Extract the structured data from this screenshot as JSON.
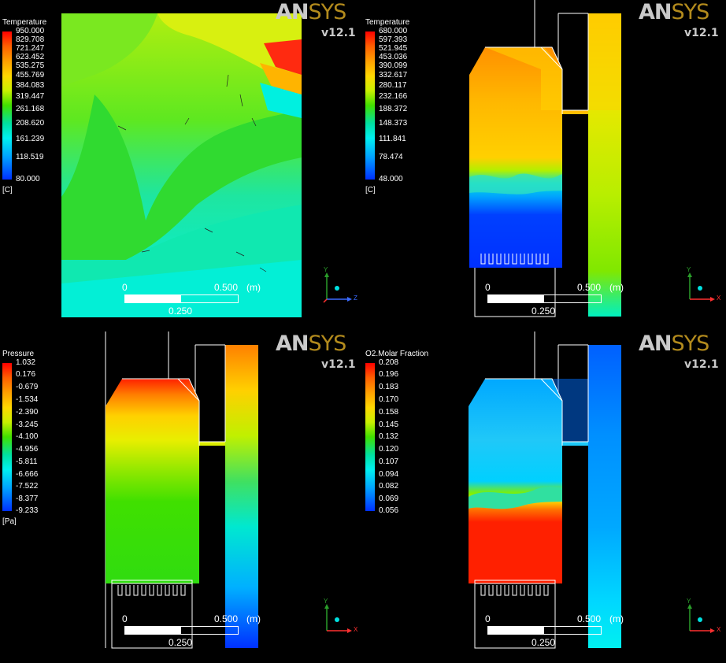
{
  "panels": [
    {
      "id": "temperature-side",
      "legend": {
        "title": "Temperature",
        "unit": "[C]",
        "ticks": [
          "950.000",
          "829.708",
          "721.247",
          "623.452",
          "535.275",
          "455.769",
          "384.083",
          "319.447",
          "261.168",
          "208.620",
          "161.239",
          "118.519",
          "80.000"
        ]
      },
      "brand": {
        "an": "AN",
        "sys": "SYS",
        "version": "v12.1"
      },
      "scale": {
        "min": "0",
        "max": "0.500",
        "unit": "(m)",
        "mid": "0.250"
      },
      "axes": {
        "up": "Y",
        "right": "Z"
      }
    },
    {
      "id": "temperature-front",
      "legend": {
        "title": "Temperature",
        "unit": "[C]",
        "ticks": [
          "680.000",
          "597.393",
          "521.945",
          "453.036",
          "390.099",
          "332.617",
          "280.117",
          "232.166",
          "188.372",
          "148.373",
          "111.841",
          "78.474",
          "48.000"
        ]
      },
      "brand": {
        "an": "AN",
        "sys": "SYS",
        "version": "v12.1"
      },
      "scale": {
        "min": "0",
        "max": "0.500",
        "unit": "(m)",
        "mid": "0.250"
      },
      "axes": {
        "up": "Y",
        "right": "X"
      }
    },
    {
      "id": "pressure-front",
      "legend": {
        "title": "Pressure",
        "unit": "[Pa]",
        "ticks": [
          "1.032",
          "0.176",
          "-0.679",
          "-1.534",
          "-2.390",
          "-3.245",
          "-4.100",
          "-4.956",
          "-5.811",
          "-6.666",
          "-7.522",
          "-8.377",
          "-9.233"
        ]
      },
      "brand": {
        "an": "AN",
        "sys": "SYS",
        "version": "v12.1"
      },
      "scale": {
        "min": "0",
        "max": "0.500",
        "unit": "(m)",
        "mid": "0.250"
      },
      "axes": {
        "up": "Y",
        "right": "X"
      }
    },
    {
      "id": "o2-front",
      "legend": {
        "title": "O2.Molar Fraction",
        "unit": "",
        "ticks": [
          "0.208",
          "0.196",
          "0.183",
          "0.170",
          "0.158",
          "0.145",
          "0.132",
          "0.120",
          "0.107",
          "0.094",
          "0.082",
          "0.069",
          "0.056"
        ]
      },
      "brand": {
        "an": "AN",
        "sys": "SYS",
        "version": "v12.1"
      },
      "scale": {
        "min": "0",
        "max": "0.500",
        "unit": "(m)",
        "mid": "0.250"
      },
      "axes": {
        "up": "Y",
        "right": "X"
      }
    }
  ],
  "colors": {
    "rainbow": [
      "#ff0000",
      "#ff4a00",
      "#ff8800",
      "#ffb000",
      "#ffd800",
      "#e8f000",
      "#b8f000",
      "#66e600",
      "#18d800",
      "#00e2a6",
      "#00f0f0",
      "#00a8ff",
      "#0044ff"
    ]
  }
}
